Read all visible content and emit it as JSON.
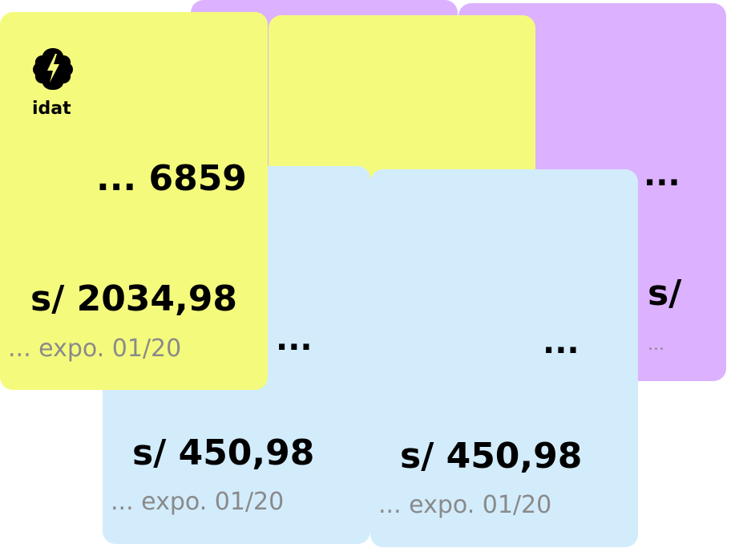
{
  "colors": {
    "yellow": "#f4fb7c",
    "purple": "#dcb1ff",
    "blue": "#d2ecfc",
    "text_main": "#000000",
    "text_muted": "#8a8a8a"
  },
  "logo": {
    "icon": "brain-bolt-icon",
    "text": "idat"
  },
  "cards": {
    "purple_a": {
      "dots": "...",
      "amount": "s/",
      "expiry": "..."
    },
    "purple_b": {
      "dots": "...",
      "amount": "s/",
      "expiry": "..."
    },
    "yellow_b": {
      "dots": "...",
      "amount": "s/",
      "expiry": "..."
    },
    "blue_a": {
      "dots": "...",
      "amount": "s/ 450,98",
      "expiry": "... expo. 01/20"
    },
    "blue_b": {
      "dots": "...",
      "amount": "s/ 450,98",
      "expiry": "... expo. 01/20"
    },
    "yellow_main": {
      "number": "... 6859",
      "amount": "s/ 2034,98",
      "expiry": "... expo. 01/20"
    }
  }
}
